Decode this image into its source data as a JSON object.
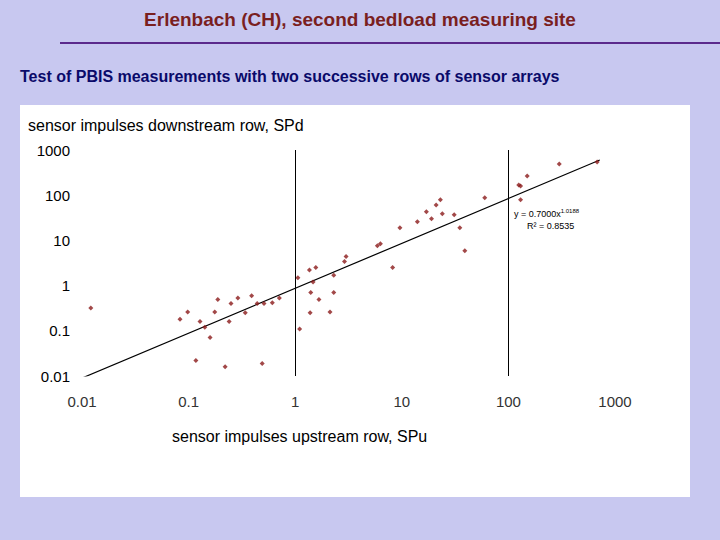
{
  "chart_data": {
    "type": "scatter",
    "title": "Erlenbach (CH), second bedload measuring site",
    "subtitle": "Test of PBIS measurements with two successive rows of sensor arrays",
    "x_label": "sensor impulses upstream row, SPu",
    "y_label": "sensor impulses downstream row, SPd",
    "x": [
      0.0121,
      0.083,
      0.098,
      0.128,
      0.117,
      0.142,
      0.159,
      0.188,
      0.176,
      0.22,
      0.24,
      0.25,
      0.29,
      0.34,
      0.39,
      0.44,
      0.51,
      0.49,
      0.61,
      0.71,
      1.06,
      1.1,
      1.36,
      1.4,
      1.47,
      1.56,
      1.67,
      1.38,
      2.12,
      2.3,
      2.3,
      2.9,
      3.0,
      5.9,
      6.3,
      8.2,
      9.6,
      14,
      17,
      19,
      21,
      23,
      24,
      31,
      35,
      39,
      60,
      125,
      130,
      130,
      150,
      300,
      680
    ],
    "values": [
      0.32,
      0.18,
      0.26,
      0.16,
      0.022,
      0.12,
      0.071,
      0.49,
      0.26,
      0.016,
      0.16,
      0.4,
      0.53,
      0.25,
      0.6,
      0.4,
      0.4,
      0.019,
      0.42,
      0.53,
      1.5,
      0.11,
      2.2,
      0.7,
      1.2,
      2.5,
      0.49,
      0.25,
      0.26,
      0.7,
      1.7,
      3.4,
      4.4,
      7.6,
      8.4,
      2.5,
      19,
      26,
      43,
      30,
      61,
      79,
      39,
      37,
      19,
      5.9,
      88,
      168,
      79,
      160,
      267,
      490,
      540
    ],
    "color": "#8b1a1a",
    "marker": "diamond",
    "log": true,
    "grid": false,
    "xlim": [
      0.01,
      1000
    ],
    "ylim": [
      0.01,
      1000
    ],
    "xticks": [
      0.01,
      0.1,
      1,
      10,
      100,
      1000
    ],
    "yticks": [
      0.01,
      0.1,
      1,
      10,
      100,
      1000
    ],
    "fit_line": {
      "x": [
        0.01,
        720
      ],
      "y": [
        0.009,
        600
      ],
      "color": "#000000"
    },
    "vlines": [
      1,
      100
    ],
    "annotations": [
      {
        "text": "y = 0.7000x",
        "superscript": "1.0188"
      },
      {
        "text": "R² = 0.8535"
      }
    ]
  }
}
